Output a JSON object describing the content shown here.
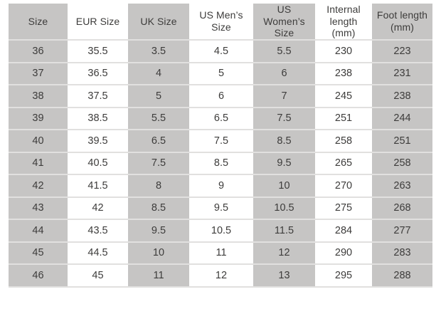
{
  "colors": {
    "stripe_gray": "#c6c5c4",
    "cell_white": "#ffffff",
    "text": "#3d3c3b",
    "row_border": "#e1e0df",
    "page_background": "#ffffff"
  },
  "chart_data": {
    "type": "table",
    "title": "",
    "columns": [
      "Size",
      "EUR Size",
      "UK Size",
      "US Men’s Size",
      "US Women’s Size",
      "Internal length (mm)",
      "Foot length (mm)"
    ],
    "rows": [
      [
        "36",
        "35.5",
        "3.5",
        "4.5",
        "5.5",
        "230",
        "223"
      ],
      [
        "37",
        "36.5",
        "4",
        "5",
        "6",
        "238",
        "231"
      ],
      [
        "38",
        "37.5",
        "5",
        "6",
        "7",
        "245",
        "238"
      ],
      [
        "39",
        "38.5",
        "5.5",
        "6.5",
        "7.5",
        "251",
        "244"
      ],
      [
        "40",
        "39.5",
        "6.5",
        "7.5",
        "8.5",
        "258",
        "251"
      ],
      [
        "41",
        "40.5",
        "7.5",
        "8.5",
        "9.5",
        "265",
        "258"
      ],
      [
        "42",
        "41.5",
        "8",
        "9",
        "10",
        "270",
        "263"
      ],
      [
        "43",
        "42",
        "8.5",
        "9.5",
        "10.5",
        "275",
        "268"
      ],
      [
        "44",
        "43.5",
        "9.5",
        "10.5",
        "11.5",
        "284",
        "277"
      ],
      [
        "45",
        "44.5",
        "10",
        "11",
        "12",
        "290",
        "283"
      ],
      [
        "46",
        "45",
        "11",
        "12",
        "13",
        "295",
        "288"
      ]
    ],
    "layout_hints": {
      "column_striping": "alternating gray/white starting gray",
      "grid": "horizontal separators only"
    }
  }
}
